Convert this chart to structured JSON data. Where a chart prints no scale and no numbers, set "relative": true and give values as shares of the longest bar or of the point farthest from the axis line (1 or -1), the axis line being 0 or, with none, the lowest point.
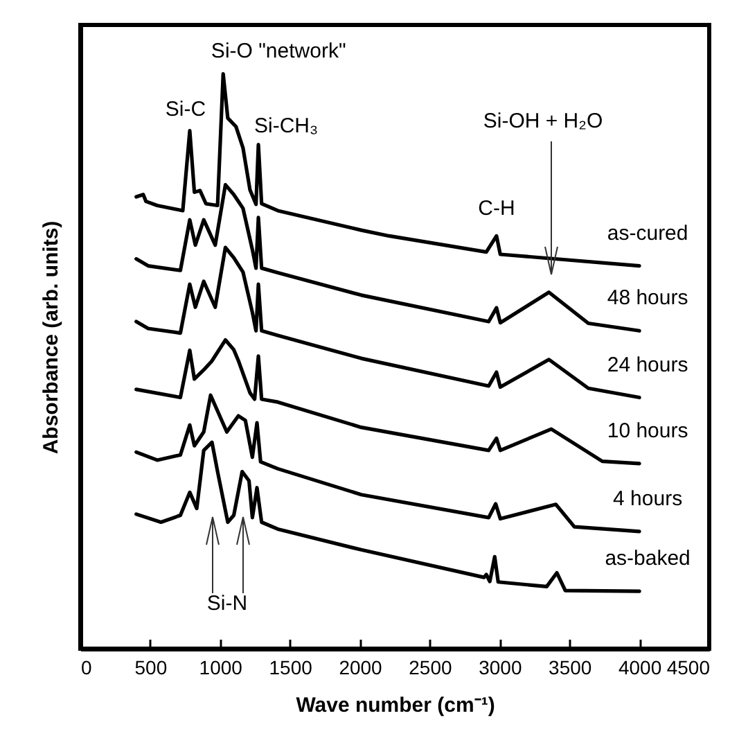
{
  "chart_data": {
    "type": "line",
    "relative": true,
    "xlabel": "Wave number (cm⁻¹)",
    "ylabel": "Absorbance (arb. units)",
    "xlim": [
      0,
      4500
    ],
    "xticks": [
      0,
      500,
      1000,
      1500,
      2000,
      2500,
      3000,
      3500,
      4000,
      4500
    ],
    "grid": false,
    "marker": "none",
    "line_style": "solid",
    "annotations": [
      {
        "text": "Si-C",
        "x": 783,
        "y": 0.901
      },
      {
        "text": "Si-O \"network\"",
        "x": 1022,
        "y": 1
      },
      {
        "text": "Si-CH₃",
        "x": 1274,
        "y": 0.877
      },
      {
        "text": "C-H",
        "x": 2978,
        "y": 0.718
      },
      "Si-OH + H₂O",
      "Si-N"
    ],
    "series": [
      {
        "name": "as-cured",
        "color": "#000000",
        "x": [
          400,
          450,
          470,
          550,
          733,
          783,
          816,
          856,
          899,
          982,
          1022,
          1055,
          1114,
          1164,
          1214,
          1257,
          1274,
          1297,
          1413,
          2010,
          2209,
          2905,
          2978,
          3005,
          4000
        ],
        "values": [
          0.786,
          0.79,
          0.778,
          0.771,
          0.762,
          0.901,
          0.794,
          0.797,
          0.774,
          0.771,
          1,
          0.923,
          0.908,
          0.871,
          0.798,
          0.773,
          0.877,
          0.774,
          0.762,
          0.728,
          0.718,
          0.69,
          0.718,
          0.686,
          0.666
        ]
      },
      {
        "name": "48 hours",
        "color": "#000000",
        "x": [
          400,
          485,
          716,
          783,
          823,
          883,
          965,
          1038,
          1098,
          1164,
          1231,
          1257,
          1274,
          1297,
          1413,
          2010,
          2922,
          2978,
          3005,
          3353,
          3635,
          4000
        ],
        "values": [
          0.678,
          0.666,
          0.658,
          0.746,
          0.702,
          0.746,
          0.702,
          0.807,
          0.79,
          0.766,
          0.694,
          0.662,
          0.75,
          0.662,
          0.654,
          0.615,
          0.569,
          0.593,
          0.567,
          0.62,
          0.566,
          0.553
        ]
      },
      {
        "name": "24 hours",
        "color": "#000000",
        "x": [
          400,
          485,
          716,
          783,
          823,
          883,
          965,
          1038,
          1098,
          1164,
          1231,
          1257,
          1274,
          1297,
          1413,
          2010,
          2922,
          2978,
          3005,
          3353,
          3635,
          4000
        ],
        "values": [
          0.569,
          0.557,
          0.549,
          0.634,
          0.594,
          0.639,
          0.594,
          0.698,
          0.68,
          0.655,
          0.585,
          0.553,
          0.634,
          0.553,
          0.545,
          0.505,
          0.457,
          0.481,
          0.455,
          0.503,
          0.453,
          0.437
        ]
      },
      {
        "name": "10 hours",
        "color": "#000000",
        "x": [
          400,
          716,
          783,
          816,
          883,
          940,
          1038,
          1098,
          1131,
          1214,
          1247,
          1274,
          1297,
          1413,
          2010,
          2922,
          2978,
          3005,
          3370,
          3735,
          4000
        ],
        "values": [
          0.451,
          0.437,
          0.519,
          0.469,
          0.485,
          0.5,
          0.537,
          0.52,
          0.501,
          0.445,
          0.434,
          0.509,
          0.434,
          0.429,
          0.385,
          0.345,
          0.366,
          0.345,
          0.382,
          0.326,
          0.322
        ]
      },
      {
        "name": "4 hours",
        "color": "#000000",
        "x": [
          400,
          550,
          716,
          783,
          816,
          883,
          932,
          1048,
          1131,
          1181,
          1231,
          1264,
          1290,
          1413,
          2010,
          2922,
          2972,
          3005,
          3403,
          3535,
          4000
        ],
        "values": [
          0.342,
          0.328,
          0.337,
          0.389,
          0.353,
          0.377,
          0.441,
          0.377,
          0.405,
          0.397,
          0.333,
          0.393,
          0.325,
          0.313,
          0.268,
          0.228,
          0.252,
          0.226,
          0.251,
          0.212,
          0.204
        ]
      },
      {
        "name": "as-baked",
        "color": "#000000",
        "x": [
          400,
          577,
          716,
          783,
          833,
          883,
          942,
          982,
          1055,
          1098,
          1158,
          1207,
          1231,
          1264,
          1297,
          1413,
          2010,
          2889,
          2905,
          2930,
          2965,
          2990,
          3337,
          3410,
          3470,
          4000
        ],
        "values": [
          0.234,
          0.22,
          0.232,
          0.272,
          0.244,
          0.345,
          0.359,
          0.308,
          0.22,
          0.232,
          0.308,
          0.292,
          0.228,
          0.28,
          0.22,
          0.208,
          0.172,
          0.124,
          0.129,
          0.117,
          0.16,
          0.116,
          0.108,
          0.132,
          0.101,
          0.1
        ]
      }
    ]
  }
}
